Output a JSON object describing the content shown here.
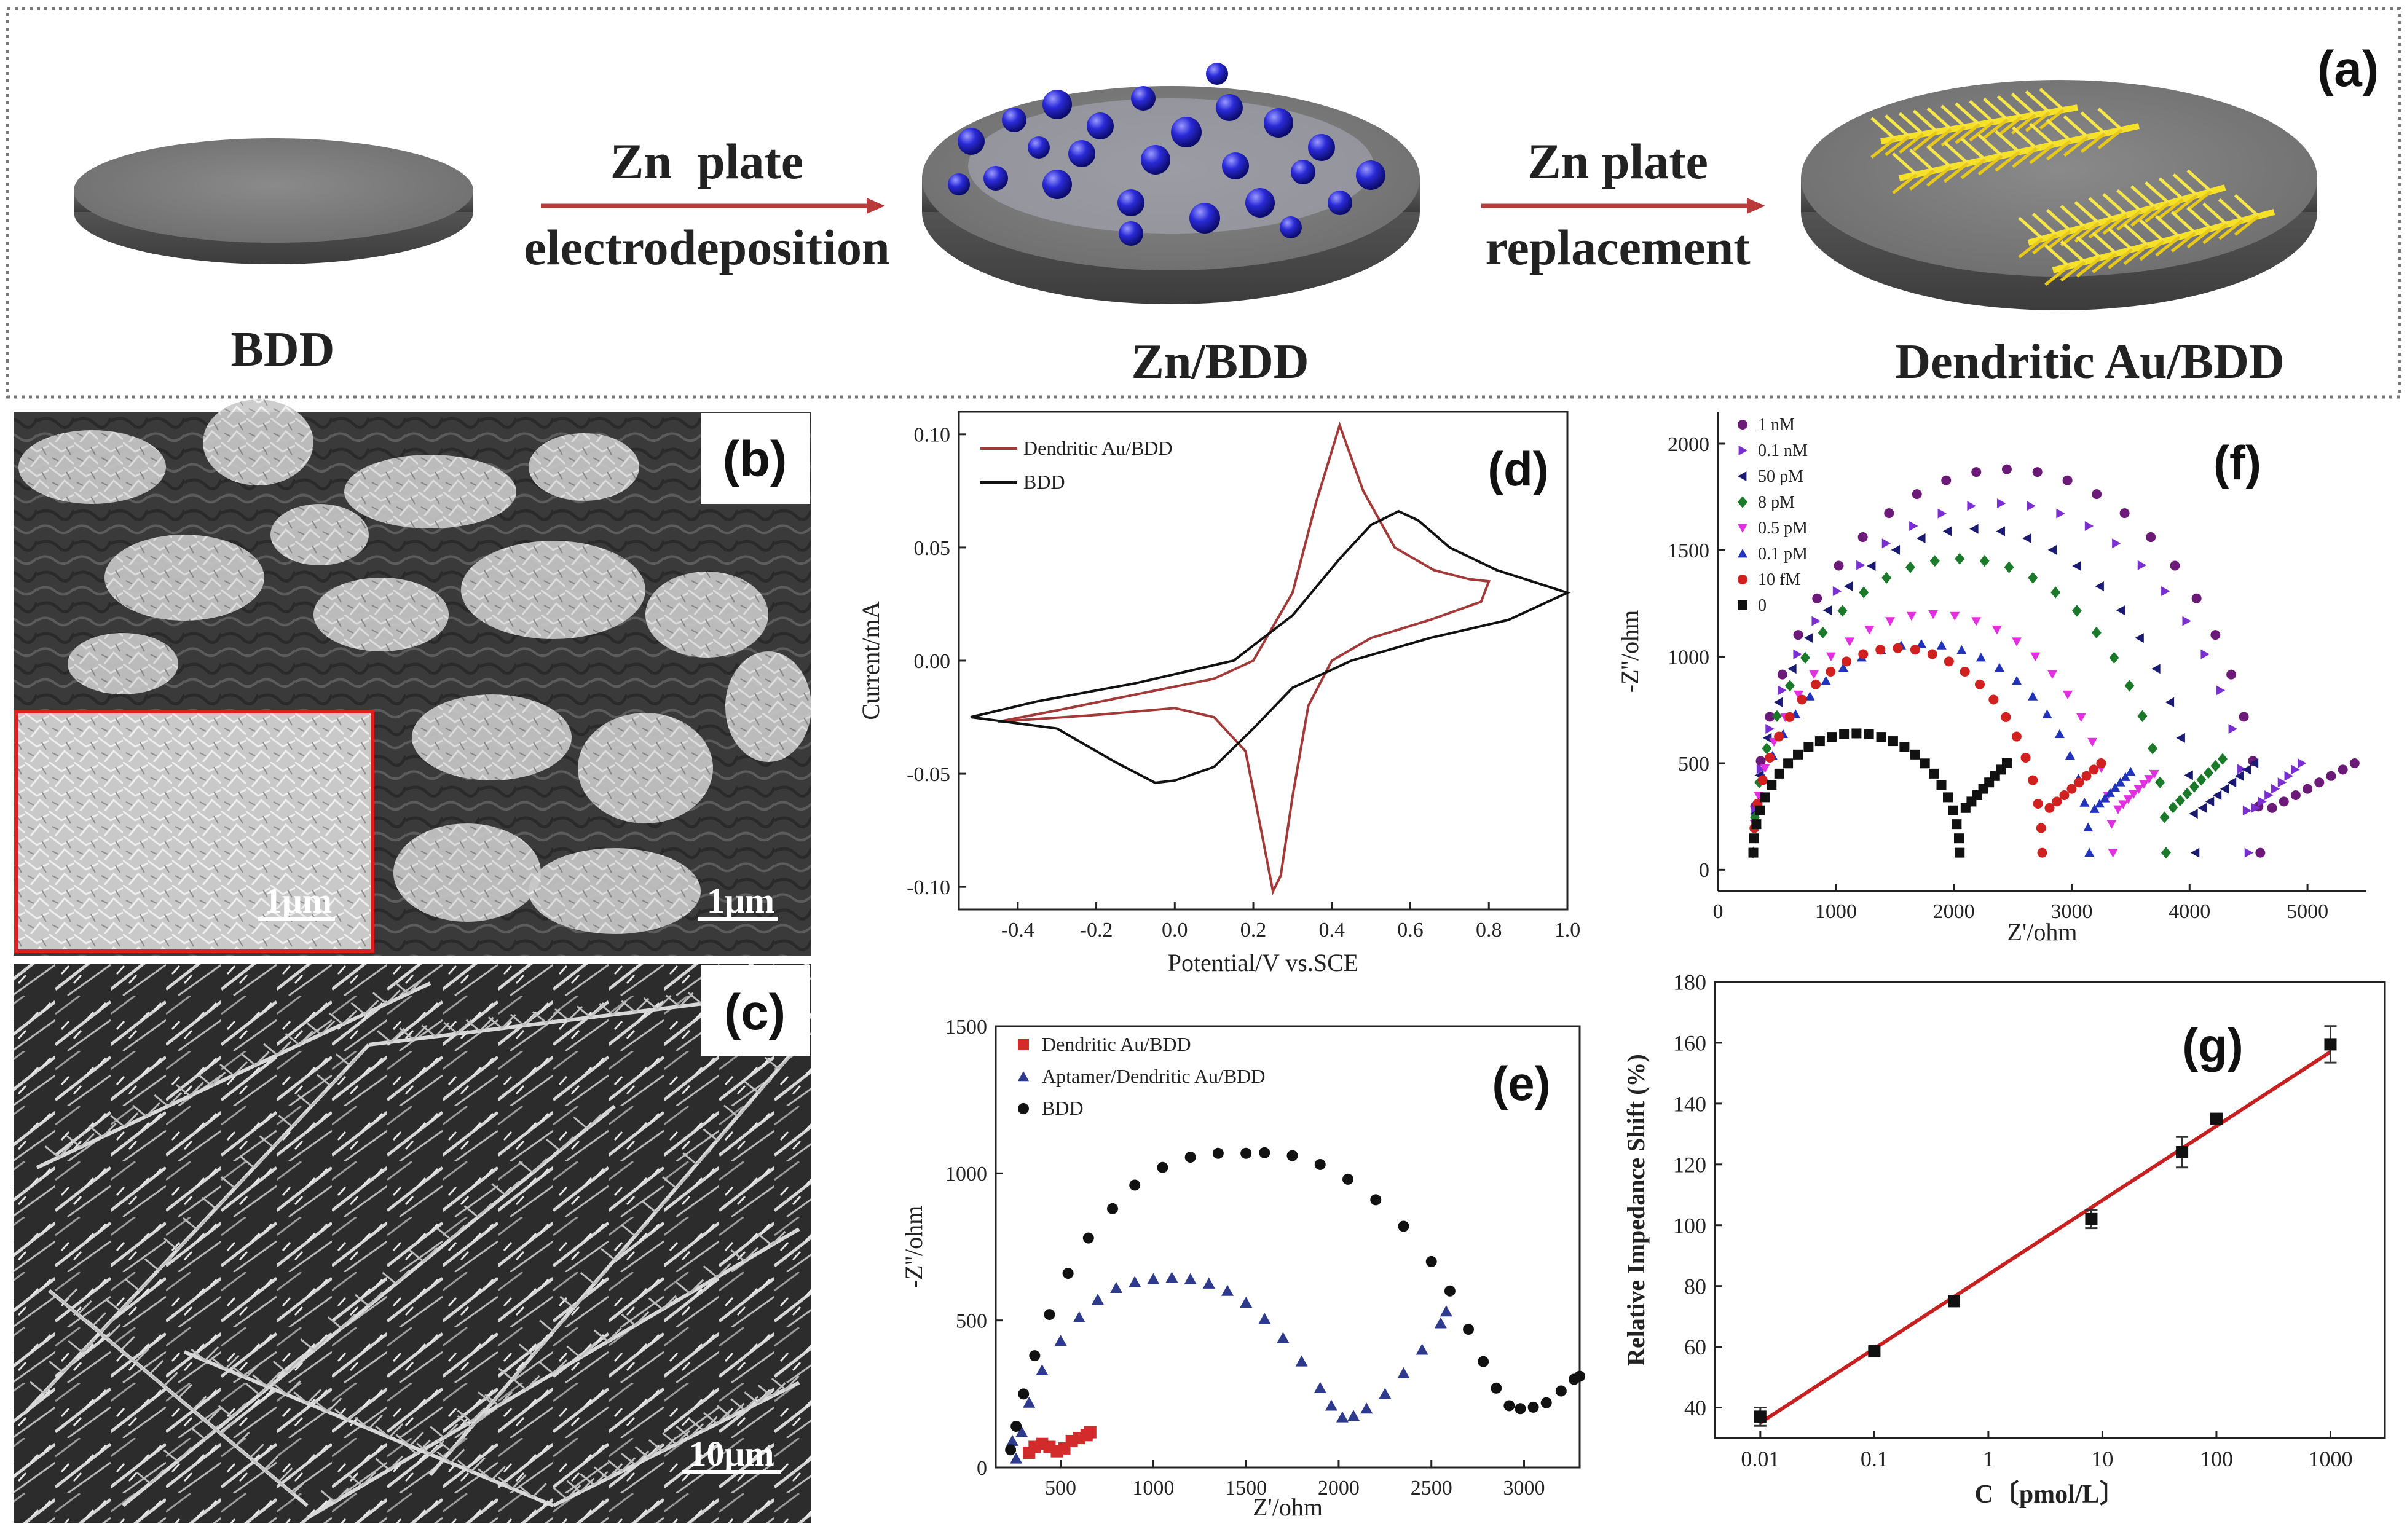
{
  "panel_a": {
    "label": "(a)",
    "step1_line1": "Zn  plate",
    "step1_line2": "electrodeposition",
    "step2_line1": "Zn plate",
    "step2_line2": "replacement",
    "stage1": "BDD",
    "stage2": "Zn/BDD",
    "stage3": "Dendritic Au/BDD",
    "colors": {
      "disc": "#777777",
      "zn_sphere": "#2a2ad8",
      "au_dendrite": "#f5e02a",
      "arrow": "#b83a3a"
    }
  },
  "panel_b": {
    "label": "(b)",
    "scale_main": "1μm",
    "scale_inset": "1μm"
  },
  "panel_c": {
    "label": "(c)",
    "scale": "10μm"
  },
  "chart_data": [
    {
      "id": "d",
      "label": "(d)",
      "type": "line",
      "xlabel": "Potential/V vs.SCE",
      "ylabel": "Current/mA",
      "xlim": [
        -0.55,
        1.0
      ],
      "ylim": [
        -0.11,
        0.11
      ],
      "xticks": [
        -0.4,
        -0.2,
        0.0,
        0.2,
        0.4,
        0.6,
        0.8,
        1.0
      ],
      "xtick_labels": [
        "-0.4",
        "-0.2",
        "0.0",
        "0.2",
        "0.4",
        "0.6",
        "0.8",
        "1.0"
      ],
      "yticks": [
        -0.1,
        -0.05,
        0.0,
        0.05,
        0.1
      ],
      "ytick_labels": [
        "-0.10",
        "-0.05",
        "0.00",
        "0.05",
        "0.10"
      ],
      "legend_position": "top-left",
      "series": [
        {
          "name": "Dendritic Au/BDD",
          "color": "#a33a3a",
          "x": [
            -0.45,
            -0.3,
            -0.1,
            0.1,
            0.2,
            0.3,
            0.36,
            0.42,
            0.48,
            0.56,
            0.66,
            0.75,
            0.8,
            0.78,
            0.65,
            0.5,
            0.4,
            0.34,
            0.3,
            0.27,
            0.25,
            0.22,
            0.18,
            0.1,
            0.0,
            -0.2,
            -0.45
          ],
          "y": [
            -0.027,
            -0.022,
            -0.015,
            -0.008,
            0.0,
            0.03,
            0.07,
            0.104,
            0.075,
            0.05,
            0.04,
            0.036,
            0.035,
            0.026,
            0.018,
            0.01,
            0.0,
            -0.02,
            -0.06,
            -0.095,
            -0.102,
            -0.075,
            -0.04,
            -0.025,
            -0.021,
            -0.024,
            -0.027
          ]
        },
        {
          "name": "BDD",
          "color": "#111111",
          "x": [
            -0.52,
            -0.35,
            -0.1,
            0.15,
            0.3,
            0.42,
            0.5,
            0.57,
            0.62,
            0.7,
            0.82,
            1.0,
            0.85,
            0.65,
            0.45,
            0.3,
            0.2,
            0.1,
            0.0,
            -0.05,
            -0.15,
            -0.3,
            -0.52
          ],
          "y": [
            -0.025,
            -0.018,
            -0.01,
            0.0,
            0.02,
            0.045,
            0.06,
            0.066,
            0.062,
            0.05,
            0.04,
            0.03,
            0.018,
            0.01,
            0.0,
            -0.012,
            -0.03,
            -0.047,
            -0.053,
            -0.054,
            -0.045,
            -0.03,
            -0.025
          ]
        }
      ]
    },
    {
      "id": "e",
      "label": "(e)",
      "type": "scatter",
      "xlabel": "Z'/ohm",
      "ylabel": "-Z''/ohm",
      "xlim": [
        150,
        3300
      ],
      "ylim": [
        0,
        1500
      ],
      "xticks": [
        500,
        1000,
        1500,
        2000,
        2500,
        3000
      ],
      "xtick_labels": [
        "500",
        "1000",
        "1500",
        "2000",
        "2500",
        "3000"
      ],
      "yticks": [
        0,
        500,
        1000,
        1500
      ],
      "ytick_labels": [
        "0",
        "500",
        "1000",
        "1500"
      ],
      "legend_position": "top-left",
      "series": [
        {
          "name": "Dendritic Au/BDD",
          "color": "#d32b2b",
          "marker": "square",
          "x": [
            330,
            360,
            400,
            440,
            480,
            520,
            560,
            600,
            640,
            660
          ],
          "y": [
            50,
            70,
            80,
            70,
            55,
            65,
            90,
            100,
            110,
            120
          ]
        },
        {
          "name": "Aptamer/Dendritic Au/BDD",
          "color": "#2e3a8c",
          "marker": "triangle",
          "x": [
            240,
            260,
            290,
            330,
            400,
            500,
            600,
            700,
            800,
            900,
            1000,
            1100,
            1200,
            1300,
            1400,
            1500,
            1600,
            1700,
            1800,
            1900,
            1960,
            2020,
            2080,
            2150,
            2250,
            2350,
            2450,
            2550,
            2580
          ],
          "y": [
            90,
            30,
            120,
            220,
            330,
            430,
            510,
            570,
            610,
            630,
            640,
            645,
            640,
            625,
            600,
            560,
            505,
            440,
            360,
            270,
            210,
            170,
            175,
            200,
            250,
            320,
            400,
            490,
            530
          ]
        },
        {
          "name": "BDD",
          "color": "#111111",
          "marker": "circle",
          "x": [
            230,
            260,
            300,
            360,
            440,
            540,
            650,
            780,
            900,
            1050,
            1200,
            1350,
            1500,
            1600,
            1750,
            1900,
            2050,
            2200,
            2350,
            2500,
            2600,
            2700,
            2780,
            2850,
            2920,
            2980,
            3050,
            3120,
            3200,
            3270,
            3300
          ],
          "y": [
            60,
            140,
            250,
            380,
            520,
            660,
            780,
            880,
            960,
            1020,
            1055,
            1068,
            1068,
            1070,
            1060,
            1030,
            980,
            910,
            820,
            700,
            600,
            470,
            360,
            270,
            210,
            200,
            205,
            220,
            260,
            300,
            310
          ]
        }
      ]
    },
    {
      "id": "f",
      "label": "(f)",
      "type": "scatter",
      "xlabel": "Z'/ohm",
      "ylabel": "-Z''/ohm",
      "xlim": [
        0,
        5500
      ],
      "ylim": [
        -100,
        2150
      ],
      "xticks": [
        0,
        1000,
        2000,
        3000,
        4000,
        5000
      ],
      "xtick_labels": [
        "0",
        "1000",
        "2000",
        "3000",
        "4000",
        "5000"
      ],
      "yticks": [
        0,
        500,
        1000,
        1500,
        2000
      ],
      "ytick_labels": [
        "0",
        "500",
        "1000",
        "1500",
        "2000"
      ],
      "legend_position": "top-left",
      "series": [
        {
          "name": "1 nM",
          "color": "#6b1a78",
          "marker": "circle",
          "r0": 300,
          "diam": 4300,
          "peak": 1880,
          "tail_to": 5400,
          "tail_h": 500
        },
        {
          "name": "0.1 nM",
          "color": "#7b2fd0",
          "marker": "triangle-right",
          "r0": 300,
          "diam": 4200,
          "peak": 1720,
          "tail_to": 4950,
          "tail_h": 500
        },
        {
          "name": "50 pM",
          "color": "#1a1a70",
          "marker": "triangle-left",
          "r0": 300,
          "diam": 3750,
          "peak": 1600,
          "tail_to": 4550,
          "tail_h": 500
        },
        {
          "name": "8 pM",
          "color": "#1a7a2a",
          "marker": "diamond",
          "r0": 300,
          "diam": 3500,
          "peak": 1460,
          "tail_to": 4280,
          "tail_h": 520
        },
        {
          "name": "0.5 pM",
          "color": "#e030e0",
          "marker": "triangle-down",
          "r0": 300,
          "diam": 3050,
          "peak": 1200,
          "tail_to": 3700,
          "tail_h": 450
        },
        {
          "name": "0.1 pM",
          "color": "#2233bb",
          "marker": "triangle",
          "r0": 300,
          "diam": 2850,
          "peak": 1060,
          "tail_to": 3500,
          "tail_h": 460
        },
        {
          "name": "10 fM",
          "color": "#d02020",
          "marker": "circle",
          "r0": 300,
          "diam": 2450,
          "peak": 1040,
          "tail_to": 3250,
          "tail_h": 500
        },
        {
          "name": "0",
          "color": "#111111",
          "marker": "square",
          "r0": 300,
          "diam": 1750,
          "peak": 640,
          "tail_to": 2450,
          "tail_h": 500
        }
      ]
    },
    {
      "id": "g",
      "label": "(g)",
      "type": "scatter",
      "xlabel": "C〔pmol/L〕",
      "ylabel": "Relative Impedance Shift (%)",
      "xscale": "log",
      "xlim": [
        0.004,
        3000
      ],
      "ylim": [
        30,
        180
      ],
      "xticks": [
        0.01,
        0.1,
        1,
        10,
        100,
        1000
      ],
      "xtick_labels": [
        "0.01",
        "0.1",
        "1",
        "10",
        "100",
        "1000"
      ],
      "yticks": [
        40,
        60,
        80,
        100,
        120,
        140,
        160,
        180
      ],
      "ytick_labels": [
        "40",
        "60",
        "80",
        "100",
        "120",
        "140",
        "160",
        "180"
      ],
      "points": [
        {
          "x": 0.01,
          "y": 37,
          "err": 3
        },
        {
          "x": 0.1,
          "y": 58.5,
          "err": 1
        },
        {
          "x": 0.5,
          "y": 75,
          "err": 1
        },
        {
          "x": 8,
          "y": 102,
          "err": 3
        },
        {
          "x": 50,
          "y": 124,
          "err": 5
        },
        {
          "x": 100,
          "y": 135,
          "err": 1
        },
        {
          "x": 1000,
          "y": 159.5,
          "err": 6
        }
      ],
      "fit": {
        "x": [
          0.01,
          1000
        ],
        "y": [
          35,
          157
        ],
        "color": "#c62020"
      }
    }
  ]
}
